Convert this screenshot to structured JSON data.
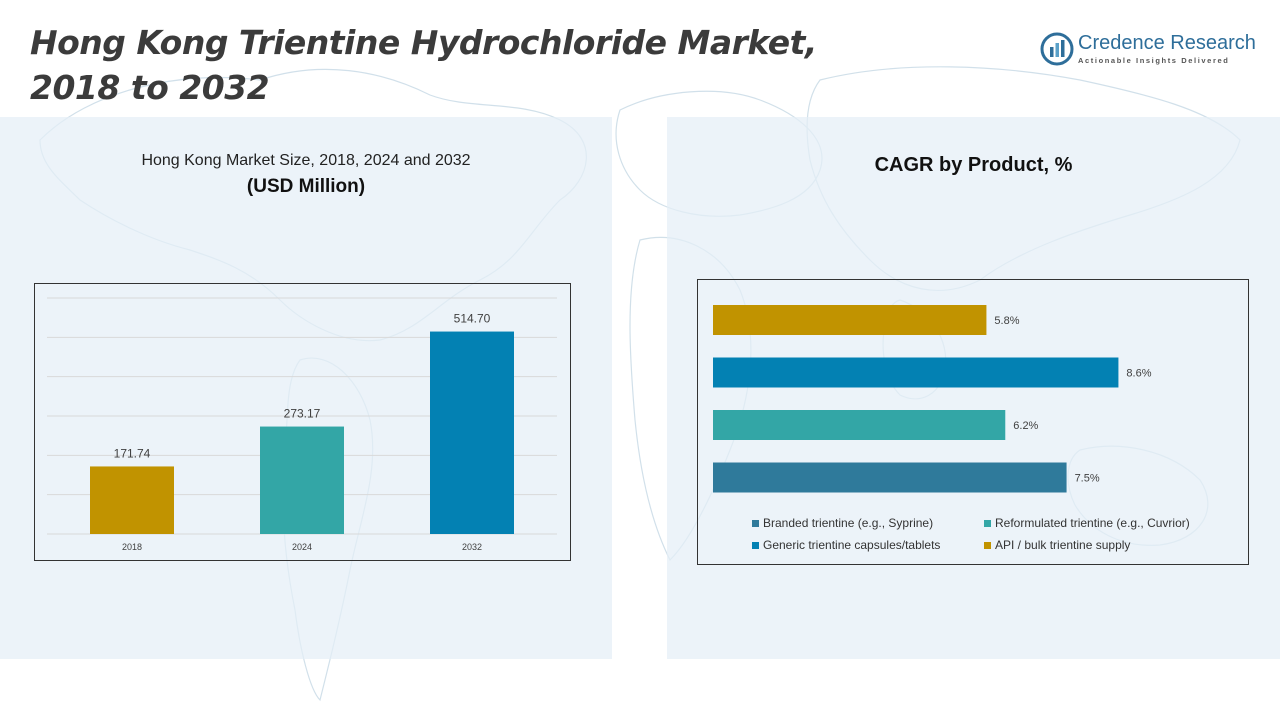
{
  "header": {
    "title_line1": "Hong Kong Trientine Hydrochloride Market,",
    "title_line2": "2018 to 2032"
  },
  "logo": {
    "name": "Credence Research",
    "tagline": "Actionable Insights Delivered",
    "color": "#2e6e9a"
  },
  "chart_data": [
    {
      "type": "bar",
      "title": "Hong Kong Market Size, 2018, 2024 and 2032",
      "subtitle": "(USD Million)",
      "categories": [
        "2018",
        "2024",
        "2032"
      ],
      "values": [
        171.74,
        273.17,
        514.7
      ],
      "value_labels": [
        "171.74",
        "273.17",
        "514.70"
      ],
      "colors": [
        "#c19300",
        "#33a6a6",
        "#0381b3"
      ],
      "ylim": [
        0,
        600
      ],
      "grid": true,
      "legend": "none"
    },
    {
      "type": "bar",
      "orientation": "horizontal",
      "title": "CAGR by Product, %",
      "categories": [
        "API / bulk trientine supply",
        "Generic trientine capsules/tablets",
        "Reformulated trientine (e.g., Cuvrior)",
        "Branded trientine (e.g., Syprine)"
      ],
      "values": [
        5.8,
        8.6,
        6.2,
        7.5
      ],
      "value_labels": [
        "5.8%",
        "8.6%",
        "6.2%",
        "7.5%"
      ],
      "colors": [
        "#c19300",
        "#0381b3",
        "#33a6a6",
        "#2f7a9b"
      ],
      "xlim": [
        0,
        10
      ],
      "grid": false,
      "legend": "bottom",
      "legend_order": [
        {
          "label": "Branded trientine (e.g., Syprine)",
          "color": "#2f7a9b"
        },
        {
          "label": "Reformulated trientine (e.g., Cuvrior)",
          "color": "#33a6a6"
        },
        {
          "label": "Generic trientine capsules/tablets",
          "color": "#0381b3"
        },
        {
          "label": "API / bulk trientine supply",
          "color": "#c19300"
        }
      ]
    }
  ]
}
